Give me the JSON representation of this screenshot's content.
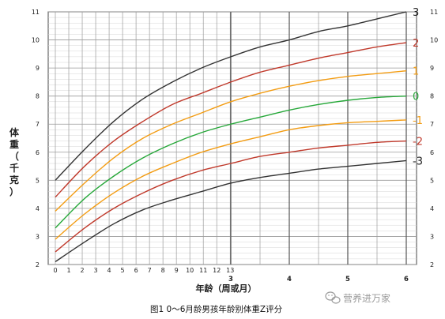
{
  "chart_data": {
    "type": "line",
    "title": "图1  0～6月龄男孩年龄别体重Z评分",
    "xlabel": "年龄（周或月）",
    "ylabel": "体重（千克）",
    "ylim": [
      2,
      11
    ],
    "yticks": [
      "2",
      "3",
      "4",
      "5",
      "6",
      "7",
      "8",
      "9",
      "10",
      "11"
    ],
    "xticks_weeks": [
      "0",
      "1",
      "2",
      "3",
      "4",
      "5",
      "6",
      "7",
      "8",
      "9",
      "10",
      "11",
      "12",
      "13"
    ],
    "xticks_months": [
      "3",
      "4",
      "5",
      "6"
    ],
    "grid": true,
    "x_units": "months",
    "x": [
      0,
      0.5,
      1,
      1.5,
      2,
      2.5,
      3,
      3.5,
      4,
      4.5,
      5,
      5.5,
      6
    ],
    "series": [
      {
        "name": "3",
        "color": "#333333",
        "values": [
          5.0,
          6.1,
          7.1,
          7.9,
          8.5,
          9.0,
          9.4,
          9.75,
          10.0,
          10.3,
          10.5,
          10.75,
          11.0
        ]
      },
      {
        "name": "2",
        "color": "#c0392b",
        "values": [
          4.4,
          5.5,
          6.4,
          7.1,
          7.7,
          8.1,
          8.5,
          8.85,
          9.1,
          9.35,
          9.55,
          9.75,
          9.9
        ]
      },
      {
        "name": "1",
        "color": "#f39c12",
        "values": [
          3.9,
          4.9,
          5.8,
          6.5,
          7.0,
          7.4,
          7.8,
          8.1,
          8.35,
          8.55,
          8.7,
          8.8,
          8.9
        ]
      },
      {
        "name": "0",
        "color": "#27a83a",
        "values": [
          3.3,
          4.35,
          5.15,
          5.8,
          6.3,
          6.7,
          7.0,
          7.25,
          7.5,
          7.7,
          7.85,
          7.95,
          8.0
        ]
      },
      {
        "name": "-1",
        "color": "#f39c12",
        "values": [
          2.9,
          3.8,
          4.55,
          5.15,
          5.6,
          6.0,
          6.3,
          6.55,
          6.8,
          6.95,
          7.05,
          7.1,
          7.15
        ]
      },
      {
        "name": "-2",
        "color": "#c0392b",
        "values": [
          2.45,
          3.3,
          4.0,
          4.55,
          5.0,
          5.35,
          5.6,
          5.85,
          6.0,
          6.15,
          6.25,
          6.35,
          6.4
        ]
      },
      {
        "name": "-3",
        "color": "#333333",
        "values": [
          2.1,
          2.8,
          3.45,
          3.95,
          4.3,
          4.6,
          4.9,
          5.1,
          5.25,
          5.4,
          5.5,
          5.6,
          5.7
        ]
      }
    ]
  },
  "watermark": {
    "text": "营养进万家",
    "icon": "wechat-icon"
  }
}
